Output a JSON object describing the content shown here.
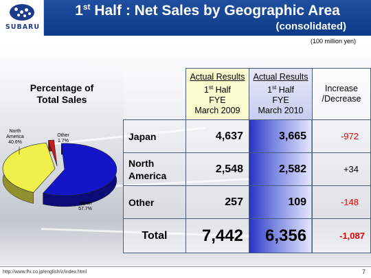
{
  "header": {
    "logo_text": "SUBARU",
    "title_prefix": "1",
    "title_sup": "st",
    "title_rest": " Half : Net Sales by Geographic Area",
    "subtitle": "(consolidated)",
    "unit": "(100 million yen)"
  },
  "pie": {
    "title_line1": "Percentage of",
    "title_line2": "Total Sales"
  },
  "table": {
    "columns": [
      {
        "line1": "Actual Results",
        "line2_num": "1",
        "line2_sup": "st",
        "line2_rest": " Half",
        "line3": "FYE",
        "line4": "March 2009"
      },
      {
        "line1": "Actual Results",
        "line2_num": "1",
        "line2_sup": "st",
        "line2_rest": " Half",
        "line3": "FYE",
        "line4": "March 2010"
      },
      {
        "line1": "Increase",
        "line2": "/Decrease"
      }
    ],
    "rows": [
      {
        "label": "Japan",
        "v2009": "4,637",
        "v2010": "3,665",
        "diff": "-972"
      },
      {
        "label_line1": "North",
        "label_line2": "America",
        "v2009": "2,548",
        "v2010": "2,582",
        "diff": "+34"
      },
      {
        "label": "Other",
        "v2009": "257",
        "v2010": "109",
        "diff": "-148"
      }
    ],
    "total": {
      "label": "Total",
      "v2009": "7,442",
      "v2010": "6,356",
      "diff": "-1,087"
    }
  },
  "chart_data": {
    "type": "pie",
    "title": "Percentage of Total Sales",
    "categories": [
      "Japan",
      "North America",
      "Other"
    ],
    "values": [
      57.7,
      40.6,
      1.7
    ],
    "labels": [
      "Japan\n57.7%",
      "North\nAmerica\n40.6%",
      "Other\n1.7%"
    ],
    "colors": [
      "#1414c8",
      "#f0f04a",
      "#c81e1e"
    ],
    "style": "3d-exploded"
  },
  "footer": {
    "url": "http://www.fhi.co.jp/english/ir/index.html",
    "page": "7"
  }
}
